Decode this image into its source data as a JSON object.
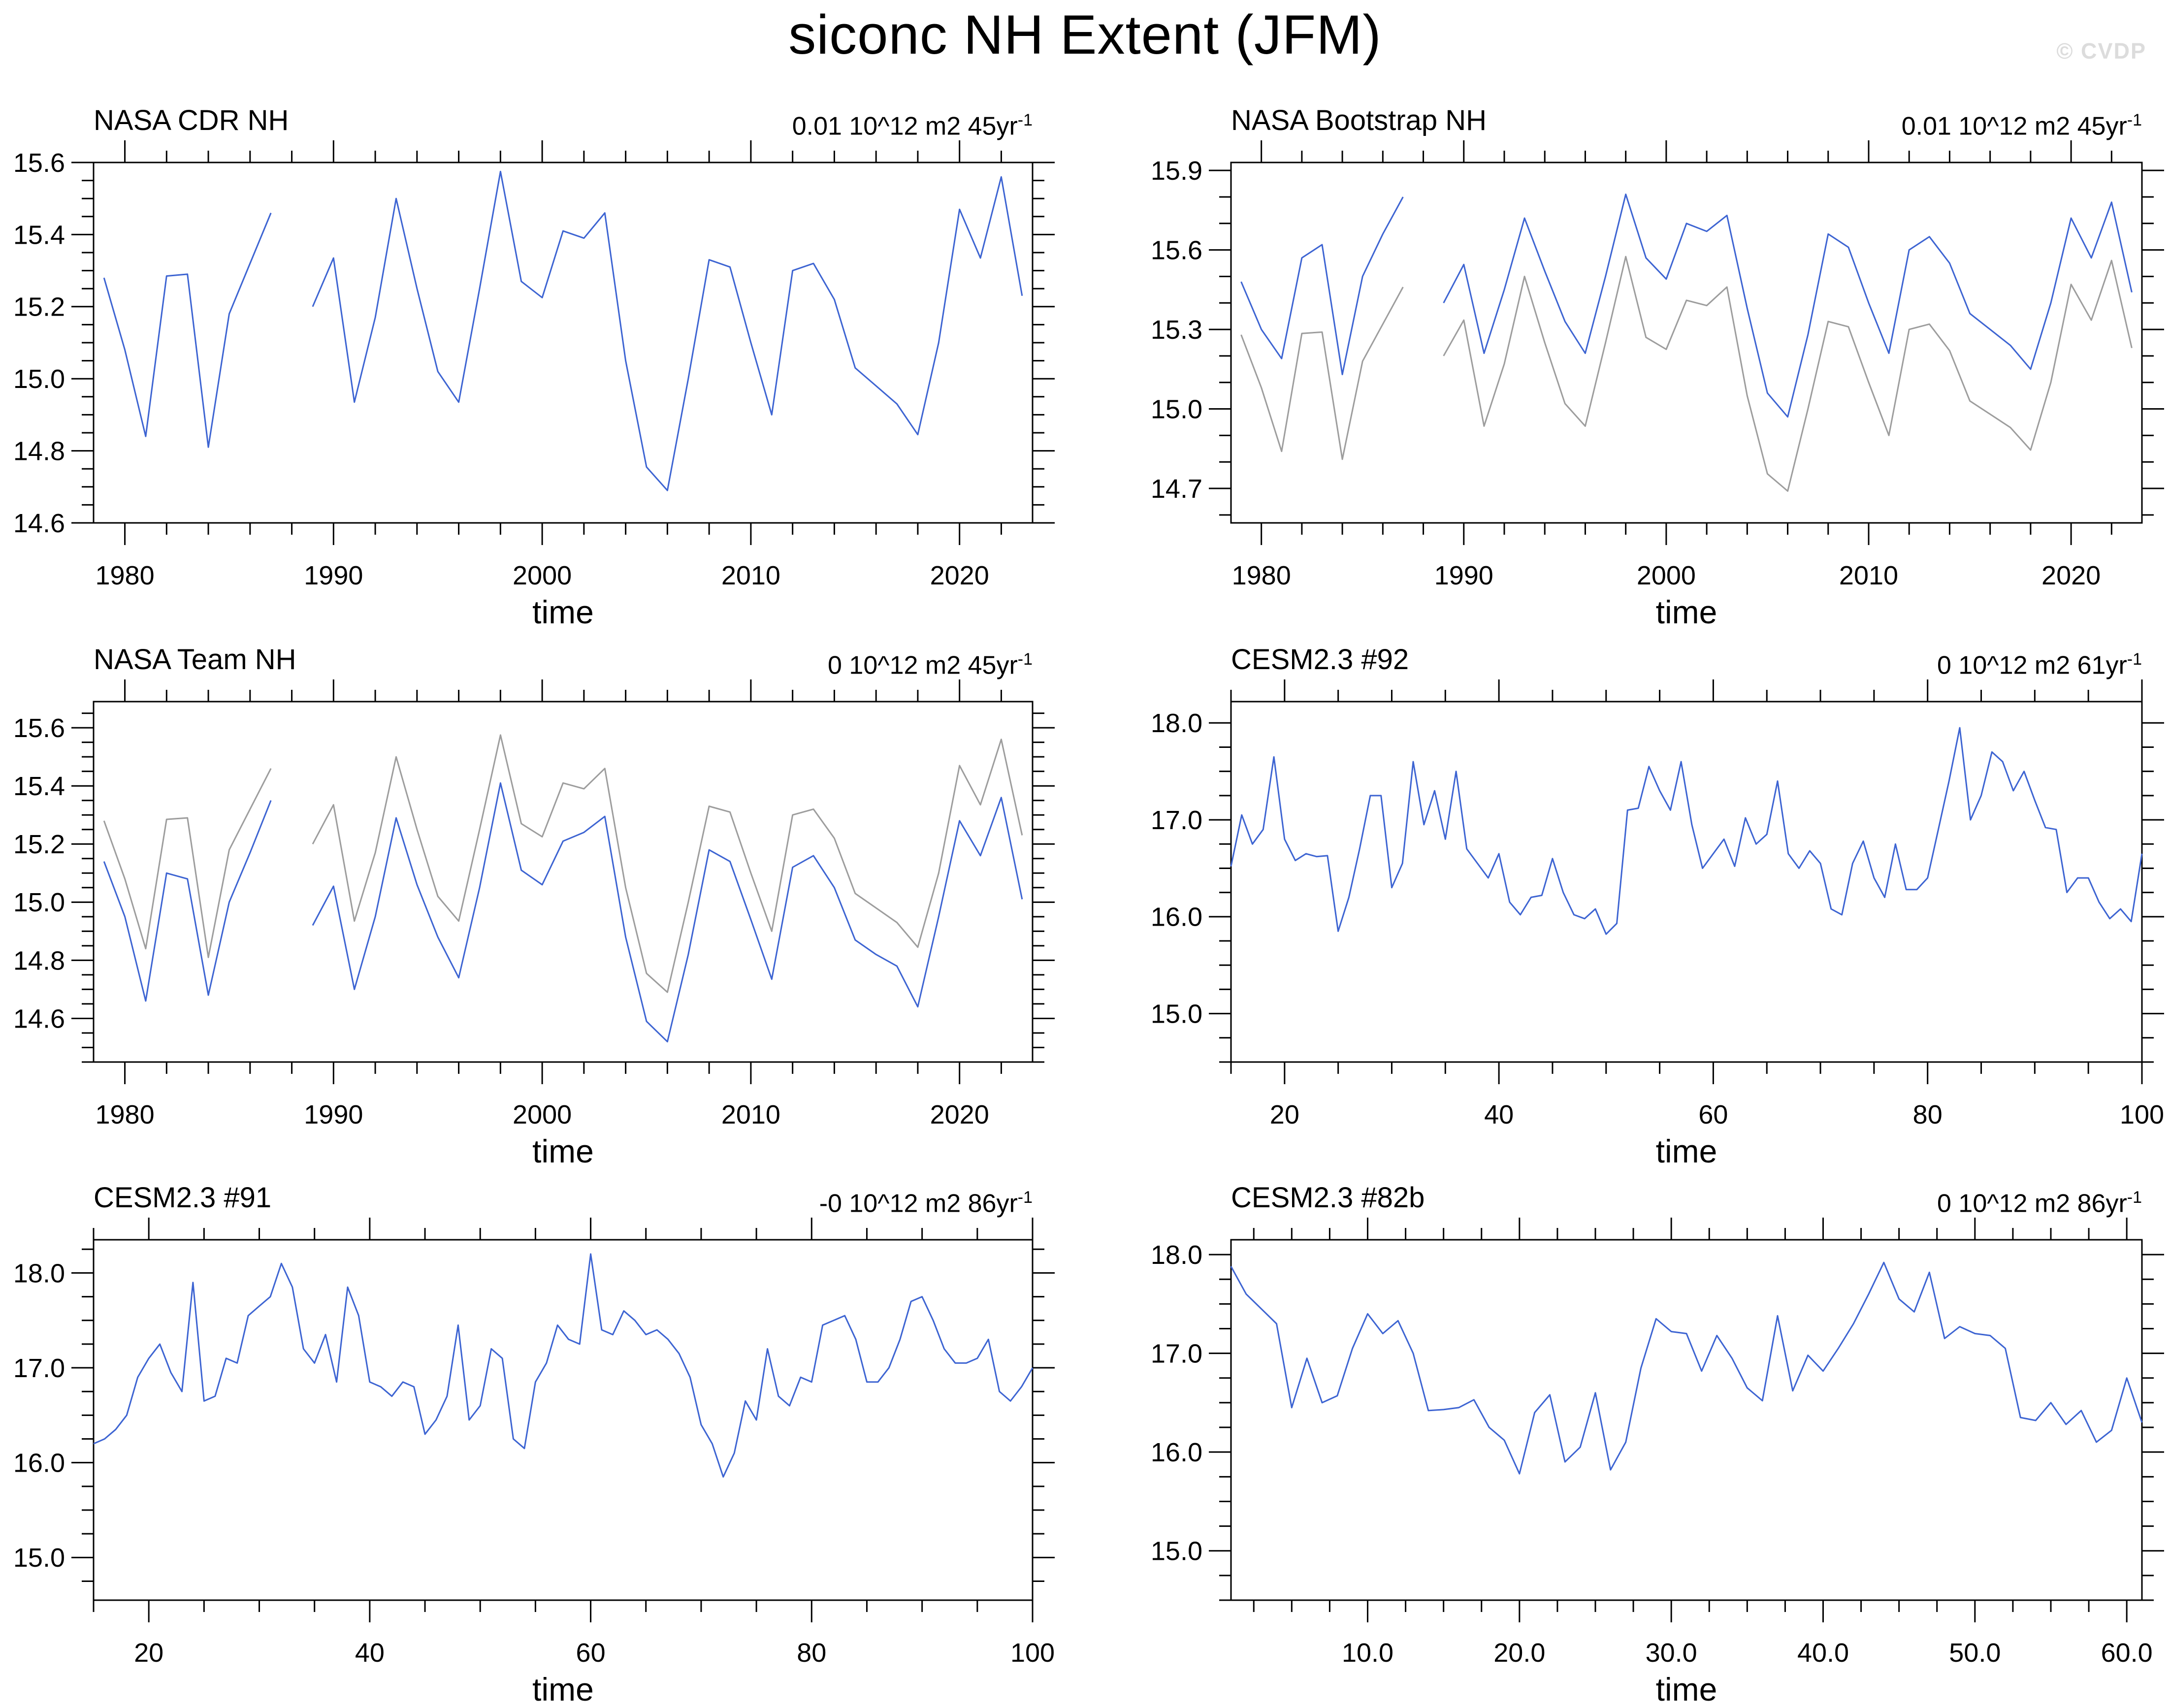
{
  "page": {
    "title": "siconc NH Extent (JFM)",
    "watermark": "© CVDP"
  },
  "colors": {
    "series_blue": "#3D64D2",
    "series_gray": "#9D9D9D",
    "axis": "#000000",
    "watermark": "#DCDCDC",
    "background": "#FFFFFF"
  },
  "chart_data": [
    {
      "id": "nasa-cdr-nh",
      "type": "line",
      "title": "NASA CDR NH",
      "trend_label": {
        "text": "0.01 10^12 m2 45yr",
        "sup": "-1"
      },
      "xlabel": "time",
      "x_range": [
        1978.5,
        2023.5
      ],
      "x_ticks": {
        "major": [
          1980,
          1990,
          2000,
          2010,
          2020
        ],
        "labels": [
          "1980",
          "1990",
          "2000",
          "2010",
          "2020"
        ],
        "minor_step": 2
      },
      "y_range": [
        14.6,
        15.6
      ],
      "y_ticks": {
        "major": [
          14.6,
          14.8,
          15.0,
          15.2,
          15.4,
          15.6
        ],
        "labels": [
          "14.6",
          "14.8",
          "15.0",
          "15.2",
          "15.4",
          "15.6"
        ],
        "minor_step": 0.05
      },
      "grid": false,
      "legend": "none",
      "series": [
        {
          "name": "NASA CDR NH",
          "color": "blue",
          "x_start": 1979,
          "x_step": 1,
          "values": [
            15.28,
            15.08,
            14.84,
            15.285,
            15.29,
            14.81,
            15.18,
            15.32,
            15.46,
            null,
            15.2,
            15.335,
            14.935,
            15.17,
            15.5,
            15.25,
            15.02,
            14.935,
            15.25,
            15.575,
            15.27,
            15.225,
            15.41,
            15.39,
            15.46,
            15.05,
            14.755,
            14.69,
            15.0,
            15.33,
            15.31,
            15.1,
            14.9,
            15.3,
            15.32,
            15.22,
            15.03,
            14.98,
            14.93,
            14.845,
            15.1,
            15.47,
            15.335,
            15.56,
            15.23
          ]
        }
      ]
    },
    {
      "id": "nasa-bootstrap-nh",
      "type": "line",
      "title": "NASA Bootstrap NH",
      "trend_label": {
        "text": "0.01 10^12 m2 45yr",
        "sup": "-1"
      },
      "xlabel": "time",
      "x_range": [
        1978.5,
        2023.5
      ],
      "x_ticks": {
        "major": [
          1980,
          1990,
          2000,
          2010,
          2020
        ],
        "labels": [
          "1980",
          "1990",
          "2000",
          "2010",
          "2020"
        ],
        "minor_step": 2
      },
      "y_range": [
        14.57,
        15.93
      ],
      "y_ticks": {
        "major": [
          14.7,
          15.0,
          15.3,
          15.6,
          15.9
        ],
        "labels": [
          "14.7",
          "15.0",
          "15.3",
          "15.6",
          "15.9"
        ],
        "minor_step": 0.1
      },
      "grid": false,
      "legend": "none",
      "series": [
        {
          "name": "NASA CDR NH reference",
          "color": "gray",
          "x_start": 1979,
          "x_step": 1,
          "values": [
            15.28,
            15.08,
            14.84,
            15.285,
            15.29,
            14.81,
            15.18,
            15.32,
            15.46,
            null,
            15.2,
            15.335,
            14.935,
            15.17,
            15.5,
            15.25,
            15.02,
            14.935,
            15.25,
            15.575,
            15.27,
            15.225,
            15.41,
            15.39,
            15.46,
            15.05,
            14.755,
            14.69,
            15.0,
            15.33,
            15.31,
            15.1,
            14.9,
            15.3,
            15.32,
            15.22,
            15.03,
            14.98,
            14.93,
            14.845,
            15.1,
            15.47,
            15.335,
            15.56,
            15.23
          ]
        },
        {
          "name": "NASA Bootstrap NH",
          "color": "blue",
          "x_start": 1979,
          "x_step": 1,
          "values": [
            15.48,
            15.3,
            15.19,
            15.57,
            15.62,
            15.13,
            15.5,
            15.66,
            15.8,
            null,
            15.4,
            15.545,
            15.21,
            15.45,
            15.72,
            15.52,
            15.33,
            15.21,
            15.5,
            15.81,
            15.57,
            15.49,
            15.7,
            15.67,
            15.73,
            15.38,
            15.06,
            14.97,
            15.28,
            15.66,
            15.61,
            15.4,
            15.21,
            15.6,
            15.65,
            15.55,
            15.36,
            15.3,
            15.24,
            15.15,
            15.4,
            15.72,
            15.57,
            15.78,
            15.44
          ]
        }
      ]
    },
    {
      "id": "nasa-team-nh",
      "type": "line",
      "title": "NASA Team NH",
      "trend_label": {
        "text": "0 10^12 m2 45yr",
        "sup": "-1"
      },
      "xlabel": "time",
      "x_range": [
        1978.5,
        2023.5
      ],
      "x_ticks": {
        "major": [
          1980,
          1990,
          2000,
          2010,
          2020
        ],
        "labels": [
          "1980",
          "1990",
          "2000",
          "2010",
          "2020"
        ],
        "minor_step": 2
      },
      "y_range": [
        14.45,
        15.69
      ],
      "y_ticks": {
        "major": [
          14.6,
          14.8,
          15.0,
          15.2,
          15.4,
          15.6
        ],
        "labels": [
          "14.6",
          "14.8",
          "15.0",
          "15.2",
          "15.4",
          "15.6"
        ],
        "minor_step": 0.05
      },
      "grid": false,
      "legend": "none",
      "series": [
        {
          "name": "NASA CDR NH reference",
          "color": "gray",
          "x_start": 1979,
          "x_step": 1,
          "values": [
            15.28,
            15.08,
            14.84,
            15.285,
            15.29,
            14.81,
            15.18,
            15.32,
            15.46,
            null,
            15.2,
            15.335,
            14.935,
            15.17,
            15.5,
            15.25,
            15.02,
            14.935,
            15.25,
            15.575,
            15.27,
            15.225,
            15.41,
            15.39,
            15.46,
            15.05,
            14.755,
            14.69,
            15.0,
            15.33,
            15.31,
            15.1,
            14.9,
            15.3,
            15.32,
            15.22,
            15.03,
            14.98,
            14.93,
            14.845,
            15.1,
            15.47,
            15.335,
            15.56,
            15.23
          ]
        },
        {
          "name": "NASA Team NH",
          "color": "blue",
          "x_start": 1979,
          "x_step": 1,
          "values": [
            15.14,
            14.95,
            14.66,
            15.1,
            15.08,
            14.68,
            15.0,
            15.17,
            15.35,
            null,
            14.92,
            15.055,
            14.7,
            14.95,
            15.29,
            15.06,
            14.88,
            14.74,
            15.05,
            15.41,
            15.11,
            15.06,
            15.21,
            15.24,
            15.295,
            14.88,
            14.59,
            14.52,
            14.82,
            15.18,
            15.14,
            14.94,
            14.735,
            15.12,
            15.16,
            15.05,
            14.87,
            14.82,
            14.78,
            14.64,
            14.95,
            15.28,
            15.16,
            15.36,
            15.01
          ]
        }
      ]
    },
    {
      "id": "cesm23-92",
      "type": "line",
      "title": "CESM2.3 #92",
      "trend_label": {
        "text": "0 10^12 m2 61yr",
        "sup": "-1"
      },
      "xlabel": "time",
      "x_range": [
        15,
        100
      ],
      "x_ticks": {
        "major": [
          20,
          40,
          60,
          80,
          100
        ],
        "labels": [
          "20",
          "40",
          "60",
          "80",
          "100"
        ],
        "minor_step": 5
      },
      "y_range": [
        14.5,
        18.22
      ],
      "y_ticks": {
        "major": [
          15.0,
          16.0,
          17.0,
          18.0
        ],
        "labels": [
          "15.0",
          "16.0",
          "17.0",
          "18.0"
        ],
        "minor_step": 0.25
      },
      "grid": false,
      "legend": "none",
      "series": [
        {
          "name": "CESM2.3 #92",
          "color": "blue",
          "x_start": 15,
          "x_step": 1,
          "values": [
            16.52,
            17.05,
            16.75,
            16.9,
            17.65,
            16.8,
            16.58,
            16.65,
            16.62,
            16.63,
            15.85,
            16.2,
            16.7,
            17.25,
            17.25,
            16.3,
            16.55,
            17.6,
            16.95,
            17.3,
            16.8,
            17.5,
            16.7,
            16.55,
            16.4,
            16.65,
            16.15,
            16.02,
            16.2,
            16.22,
            16.6,
            16.25,
            16.02,
            15.98,
            16.08,
            15.82,
            15.93,
            17.1,
            17.12,
            17.55,
            17.3,
            17.1,
            17.6,
            16.95,
            16.5,
            16.65,
            16.8,
            16.52,
            17.02,
            16.75,
            16.85,
            17.4,
            16.65,
            16.5,
            16.68,
            16.55,
            16.08,
            16.02,
            16.55,
            16.78,
            16.4,
            16.2,
            16.75,
            16.28,
            16.28,
            16.4,
            16.9,
            17.4,
            17.95,
            17.0,
            17.25,
            17.7,
            17.6,
            17.3,
            17.5,
            17.2,
            16.92,
            16.9,
            16.25,
            16.4,
            16.4,
            16.15,
            15.98,
            16.08,
            15.95,
            16.65
          ]
        }
      ]
    },
    {
      "id": "cesm23-91",
      "type": "line",
      "title": "CESM2.3 #91",
      "trend_label": {
        "text": "-0 10^12 m2 86yr",
        "sup": "-1"
      },
      "xlabel": "time",
      "x_range": [
        15,
        100
      ],
      "x_ticks": {
        "major": [
          20,
          40,
          60,
          80,
          100
        ],
        "labels": [
          "20",
          "40",
          "60",
          "80",
          "100"
        ],
        "minor_step": 5
      },
      "y_range": [
        14.55,
        18.35
      ],
      "y_ticks": {
        "major": [
          15.0,
          16.0,
          17.0,
          18.0
        ],
        "labels": [
          "15.0",
          "16.0",
          "17.0",
          "18.0"
        ],
        "minor_step": 0.25
      },
      "grid": false,
      "legend": "none",
      "series": [
        {
          "name": "CESM2.3 #91",
          "color": "blue",
          "x_start": 15,
          "x_step": 1,
          "values": [
            16.2,
            16.25,
            16.35,
            16.5,
            16.9,
            17.1,
            17.25,
            16.95,
            16.75,
            17.9,
            16.65,
            16.7,
            17.1,
            17.05,
            17.55,
            17.65,
            17.75,
            18.1,
            17.85,
            17.2,
            17.05,
            17.35,
            16.85,
            17.85,
            17.55,
            16.85,
            16.8,
            16.7,
            16.85,
            16.8,
            16.3,
            16.45,
            16.7,
            17.45,
            16.45,
            16.6,
            17.2,
            17.1,
            16.25,
            16.15,
            16.85,
            17.05,
            17.45,
            17.3,
            17.25,
            18.2,
            17.4,
            17.35,
            17.6,
            17.5,
            17.35,
            17.4,
            17.3,
            17.15,
            16.9,
            16.4,
            16.2,
            15.85,
            16.1,
            16.65,
            16.45,
            17.2,
            16.7,
            16.6,
            16.9,
            16.85,
            17.45,
            17.5,
            17.55,
            17.3,
            16.85,
            16.85,
            17.0,
            17.3,
            17.7,
            17.75,
            17.5,
            17.2,
            17.05,
            17.05,
            17.1,
            17.3,
            16.75,
            16.65,
            16.8,
            17.0
          ]
        }
      ]
    },
    {
      "id": "cesm23-82b",
      "type": "line",
      "title": "CESM2.3 #82b",
      "trend_label": {
        "text": "0 10^12 m2 86yr",
        "sup": "-1"
      },
      "xlabel": "time",
      "x_range": [
        1,
        61
      ],
      "x_ticks": {
        "major": [
          10,
          20,
          30,
          40,
          50,
          60
        ],
        "labels": [
          "10.0",
          "20.0",
          "30.0",
          "40.0",
          "50.0",
          "60.0"
        ],
        "minor_step": 2.5
      },
      "y_range": [
        14.5,
        18.15
      ],
      "y_ticks": {
        "major": [
          15.0,
          16.0,
          17.0,
          18.0
        ],
        "labels": [
          "15.0",
          "16.0",
          "17.0",
          "18.0"
        ],
        "minor_step": 0.25
      },
      "grid": false,
      "legend": "none",
      "series": [
        {
          "name": "CESM2.3 #82b",
          "color": "blue",
          "x_start": 1,
          "x_step": 1,
          "values": [
            17.88,
            17.6,
            17.45,
            17.3,
            16.45,
            16.95,
            16.5,
            16.57,
            17.05,
            17.4,
            17.2,
            17.33,
            17.0,
            16.42,
            16.43,
            16.45,
            16.53,
            16.25,
            16.12,
            15.78,
            16.4,
            16.58,
            15.9,
            16.05,
            16.6,
            15.82,
            16.1,
            16.85,
            17.35,
            17.22,
            17.2,
            16.82,
            17.18,
            16.95,
            16.65,
            16.52,
            17.38,
            16.62,
            16.98,
            16.82,
            17.05,
            17.3,
            17.6,
            17.92,
            17.55,
            17.42,
            17.82,
            17.15,
            17.27,
            17.2,
            17.18,
            17.05,
            16.35,
            16.32,
            16.5,
            16.28,
            16.42,
            16.1,
            16.22,
            16.75,
            16.3
          ]
        }
      ]
    }
  ]
}
